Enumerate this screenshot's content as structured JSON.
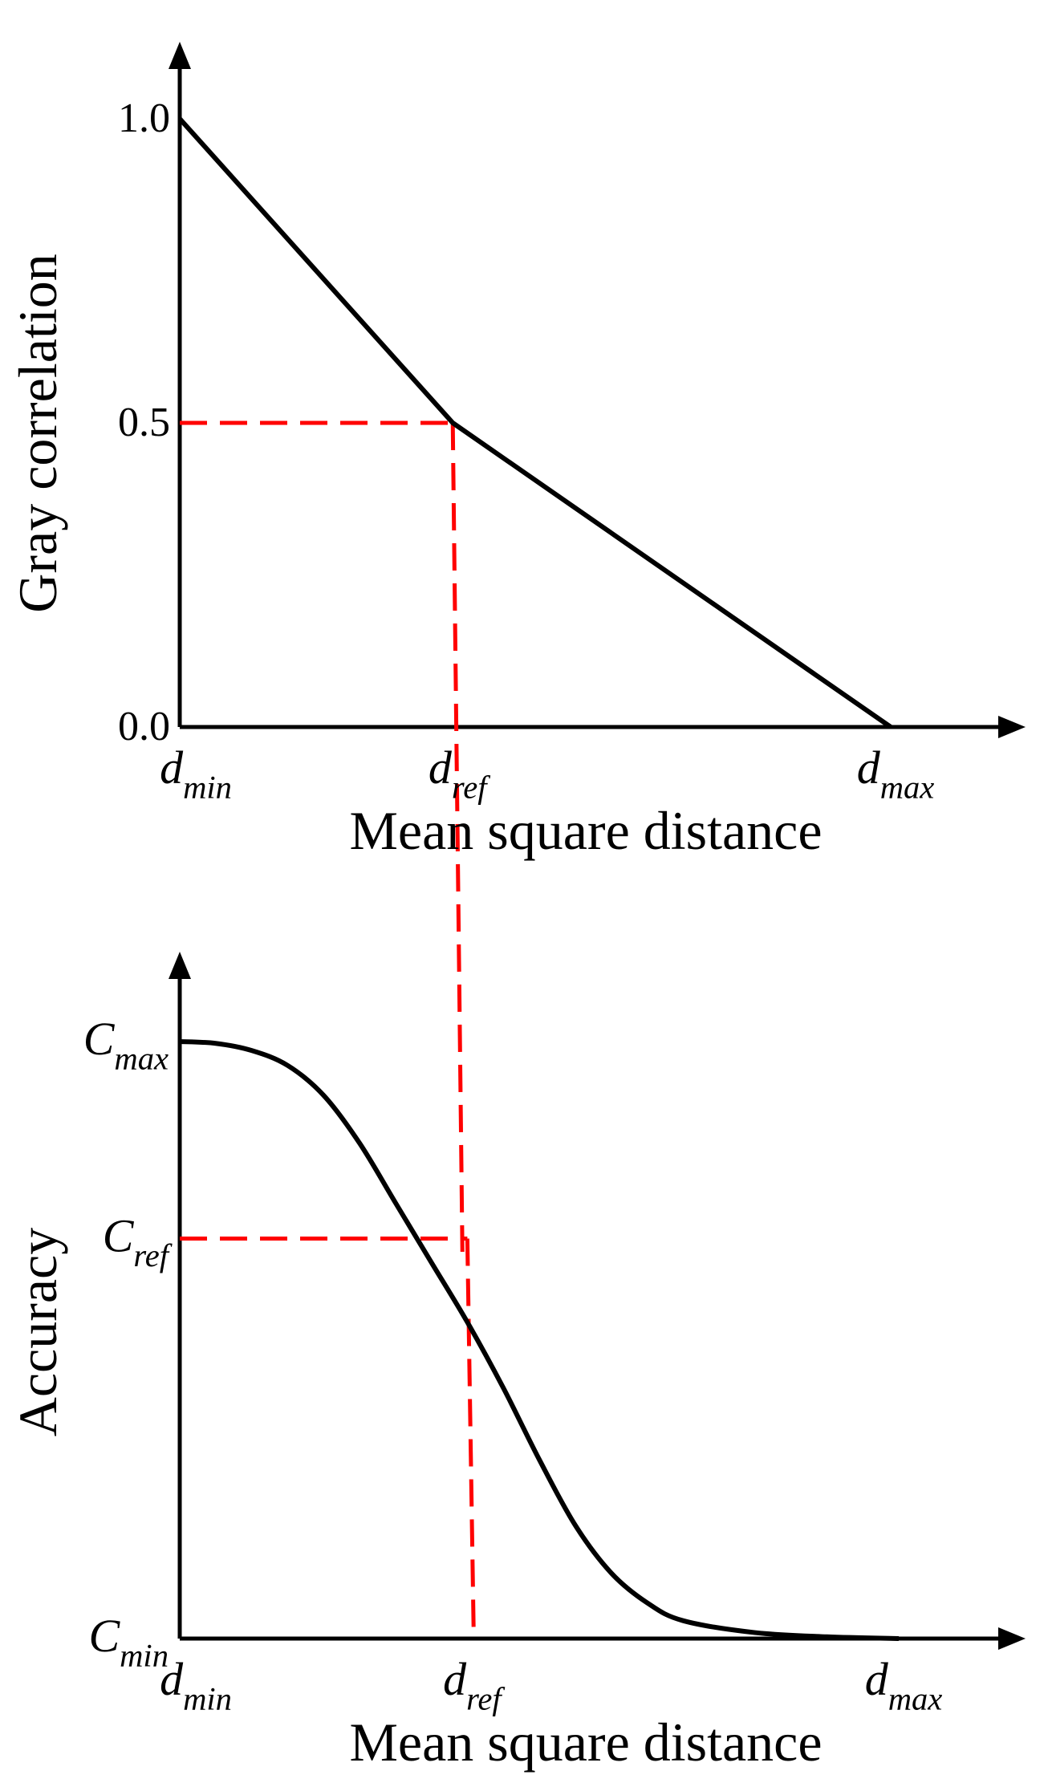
{
  "chart_data": [
    {
      "type": "line",
      "ylabel": "Gray correlation",
      "xlabel": "Mean square distance",
      "y_ticks": [
        "0.0",
        "0.5",
        "1.0"
      ],
      "x_ticks": [
        {
          "base": "d",
          "sub": "min"
        },
        {
          "base": "d",
          "sub": "ref"
        },
        {
          "base": "d",
          "sub": "max"
        }
      ],
      "xlim": [
        0,
        1
      ],
      "ylim": [
        0,
        1.12
      ],
      "series": [
        {
          "values": [
            {
              "x": 0.0,
              "y": 1.0
            },
            {
              "x": 0.384,
              "y": 0.5
            },
            {
              "x": 1.0,
              "y": 0.0
            }
          ]
        }
      ],
      "reference": {
        "x": 0.384,
        "y": 0.5,
        "color": "#ff0000"
      }
    },
    {
      "type": "line",
      "ylabel": "Accuracy",
      "xlabel": "Mean square distance",
      "y_ticks": [
        {
          "base": "C",
          "sub": "min"
        },
        {
          "base": "C",
          "sub": "ref"
        },
        {
          "base": "C",
          "sub": "max"
        }
      ],
      "x_ticks": [
        {
          "base": "d",
          "sub": "min"
        },
        {
          "base": "d",
          "sub": "ref"
        },
        {
          "base": "d",
          "sub": "max"
        }
      ],
      "xlim": [
        0,
        1
      ],
      "ylim": [
        0,
        1.15
      ],
      "series": [
        {
          "values": [
            {
              "x": 0.0,
              "y": 1.0
            },
            {
              "x": 0.05,
              "y": 0.997
            },
            {
              "x": 0.1,
              "y": 0.985
            },
            {
              "x": 0.15,
              "y": 0.96
            },
            {
              "x": 0.2,
              "y": 0.91
            },
            {
              "x": 0.25,
              "y": 0.83
            },
            {
              "x": 0.3,
              "y": 0.73
            },
            {
              "x": 0.35,
              "y": 0.63
            },
            {
              "x": 0.4,
              "y": 0.53
            },
            {
              "x": 0.45,
              "y": 0.42
            },
            {
              "x": 0.5,
              "y": 0.3
            },
            {
              "x": 0.55,
              "y": 0.19
            },
            {
              "x": 0.6,
              "y": 0.11
            },
            {
              "x": 0.65,
              "y": 0.06
            },
            {
              "x": 0.7,
              "y": 0.03
            },
            {
              "x": 0.8,
              "y": 0.01
            },
            {
              "x": 0.9,
              "y": 0.003
            },
            {
              "x": 1.0,
              "y": 0.0
            }
          ]
        }
      ],
      "reference": {
        "x": 0.4,
        "y": 0.67,
        "color": "#ff0000"
      }
    }
  ]
}
